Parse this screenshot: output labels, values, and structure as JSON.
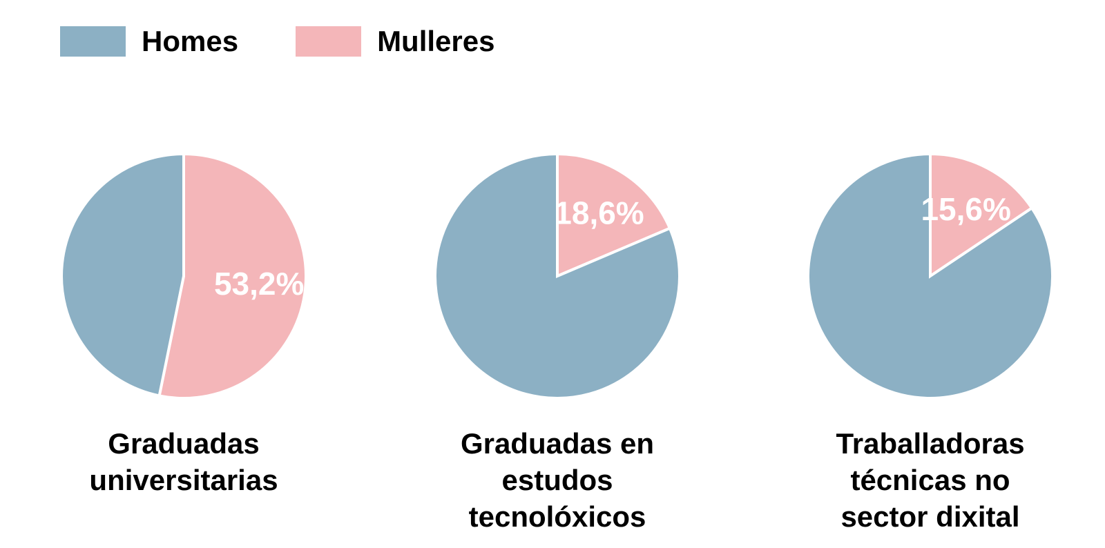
{
  "legend": {
    "items": [
      {
        "label": "Homes",
        "color": "#8CB0C4"
      },
      {
        "label": "Mulleres",
        "color": "#F4B6B9"
      }
    ]
  },
  "chart_data": {
    "type": "pie",
    "title": "",
    "legend_position": "top-left",
    "start_angle_deg": 0,
    "direction": "clockwise",
    "value_label_color": "#FFFFFF",
    "separator_color": "#FFFFFF",
    "series_names": [
      "Homes",
      "Mulleres"
    ],
    "charts": [
      {
        "caption_lines": [
          "Graduadas",
          "universitarias"
        ],
        "slices": [
          {
            "name": "Mulleres",
            "value": 53.2,
            "color": "#F4B6B9",
            "label": "53,2%"
          },
          {
            "name": "Homes",
            "value": 46.8,
            "color": "#8CB0C4",
            "label": ""
          }
        ]
      },
      {
        "caption_lines": [
          "Graduadas en",
          "estudos",
          "tecnolóxicos"
        ],
        "slices": [
          {
            "name": "Mulleres",
            "value": 18.6,
            "color": "#F4B6B9",
            "label": "18,6%"
          },
          {
            "name": "Homes",
            "value": 81.4,
            "color": "#8CB0C4",
            "label": ""
          }
        ]
      },
      {
        "caption_lines": [
          "Traballadoras",
          "técnicas no",
          "sector dixital"
        ],
        "slices": [
          {
            "name": "Mulleres",
            "value": 15.6,
            "color": "#F4B6B9",
            "label": "15,6%"
          },
          {
            "name": "Homes",
            "value": 84.4,
            "color": "#8CB0C4",
            "label": ""
          }
        ]
      }
    ]
  }
}
